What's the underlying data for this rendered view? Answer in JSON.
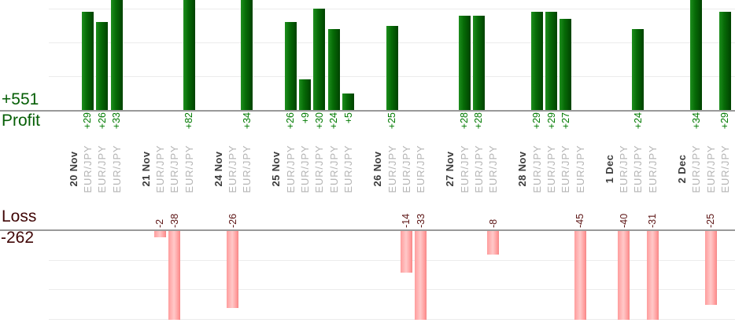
{
  "chart_data": {
    "type": "bar",
    "description": "Profit and loss per trade grouped by date",
    "profit": {
      "label": "Profit",
      "total": "+551"
    },
    "loss": {
      "label": "Loss",
      "total": "-262"
    },
    "axes": {
      "profit_gridline_step": 10,
      "loss_gridline_step": 10,
      "loss_visible_min": -30,
      "grid": true
    },
    "groups": [
      {
        "date": "20 Nov",
        "trades": [
          {
            "symbol": "EUR/JPY",
            "value": 29
          },
          {
            "symbol": "EUR/JPY",
            "value": 26
          },
          {
            "symbol": "EUR/JPY",
            "value": 33
          }
        ]
      },
      {
        "date": "21 Nov",
        "trades": [
          {
            "symbol": "EUR/JPY",
            "value": -2
          },
          {
            "symbol": "EUR/JPY",
            "value": -38
          },
          {
            "symbol": "EUR/JPY",
            "value": 82
          }
        ]
      },
      {
        "date": "24 Nov",
        "trades": [
          {
            "symbol": "EUR/JPY",
            "value": -26
          },
          {
            "symbol": "EUR/JPY",
            "value": 34
          }
        ]
      },
      {
        "date": "25 Nov",
        "trades": [
          {
            "symbol": "EUR/JPY",
            "value": 26
          },
          {
            "symbol": "EUR/JPY",
            "value": 9
          },
          {
            "symbol": "EUR/JPY",
            "value": 30
          },
          {
            "symbol": "EUR/JPY",
            "value": 24
          },
          {
            "symbol": "EUR/JPY",
            "value": 5
          }
        ]
      },
      {
        "date": "26 Nov",
        "trades": [
          {
            "symbol": "EUR/JPY",
            "value": 25
          },
          {
            "symbol": "EUR/JPY",
            "value": -14
          },
          {
            "symbol": "EUR/JPY",
            "value": -33
          }
        ]
      },
      {
        "date": "27 Nov",
        "trades": [
          {
            "symbol": "EUR/JPY",
            "value": 28
          },
          {
            "symbol": "EUR/JPY",
            "value": 28
          },
          {
            "symbol": "EUR/JPY",
            "value": -8
          }
        ]
      },
      {
        "date": "28 Nov",
        "trades": [
          {
            "symbol": "EUR/JPY",
            "value": 29
          },
          {
            "symbol": "EUR/JPY",
            "value": 29
          },
          {
            "symbol": "EUR/JPY",
            "value": 27
          },
          {
            "symbol": "EUR/JPY",
            "value": -45
          }
        ]
      },
      {
        "date": "1 Dec",
        "trades": [
          {
            "symbol": "EUR/JPY",
            "value": -40
          },
          {
            "symbol": "EUR/JPY",
            "value": 24
          },
          {
            "symbol": "EUR/JPY",
            "value": -31
          }
        ]
      },
      {
        "date": "2 Dec",
        "trades": [
          {
            "symbol": "EUR/JPY",
            "value": 34
          },
          {
            "symbol": "EUR/JPY",
            "value": -25
          },
          {
            "symbol": "EUR/JPY",
            "value": 29
          }
        ]
      }
    ],
    "colors": {
      "profit_bar": "#006600",
      "profit_text": "#007a00",
      "loss_bar": "#ffb0b0",
      "loss_text": "#5c1414",
      "date_text": "#3c3c3c",
      "symbol_text": "#b4b4b4",
      "axis_line": "#999999",
      "gridline": "#ececec"
    }
  }
}
